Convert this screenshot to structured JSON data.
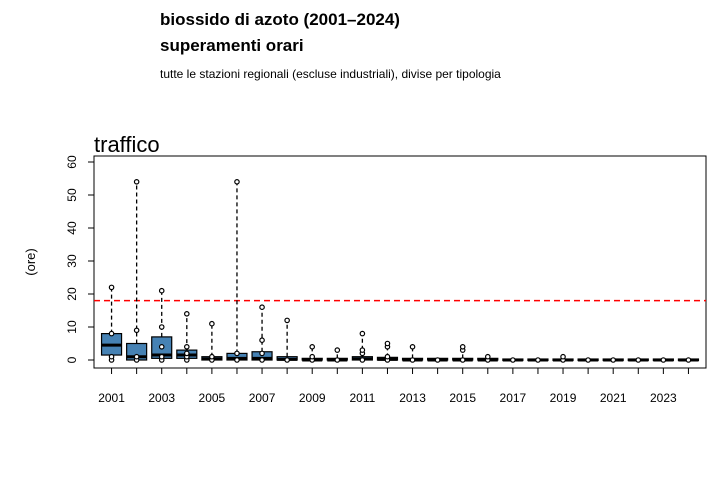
{
  "header": {
    "title_line1": "biossido di azoto (2001–2024)",
    "title_line2": "superamenti orari",
    "subtitle": "tutte le stazioni regionali (escluse industriali), divise per tipologia"
  },
  "chart_data": {
    "type": "boxplot",
    "panel_title": "traffico",
    "ylabel": "(ore)",
    "ylim": [
      0,
      60
    ],
    "yticks": [
      0,
      10,
      20,
      30,
      40,
      50,
      60
    ],
    "xlim": [
      2000.3,
      2024.7
    ],
    "xtick_labels": [
      "2001",
      "2003",
      "2005",
      "2007",
      "2009",
      "2011",
      "2013",
      "2015",
      "2017",
      "2019",
      "2021",
      "2023"
    ],
    "reference_line": {
      "value": 18,
      "color": "#ff0000",
      "style": "dashed"
    },
    "box_color": "#4682b4",
    "boxes": [
      {
        "year": 2001,
        "q1": 1.5,
        "median": 4.5,
        "q3": 8,
        "whisker_low": 0,
        "whisker_high": 22,
        "points": [
          0,
          1,
          8,
          22
        ]
      },
      {
        "year": 2002,
        "q1": 0,
        "median": 1,
        "q3": 5,
        "whisker_low": 0,
        "whisker_high": 54,
        "points": [
          0,
          1,
          9,
          54
        ]
      },
      {
        "year": 2003,
        "q1": 0.5,
        "median": 1.5,
        "q3": 7,
        "whisker_low": 0,
        "whisker_high": 21,
        "points": [
          0,
          1,
          4,
          10,
          21
        ]
      },
      {
        "year": 2004,
        "q1": 0.5,
        "median": 1.5,
        "q3": 3,
        "whisker_low": 0,
        "whisker_high": 14,
        "points": [
          0,
          1,
          2,
          4,
          14
        ]
      },
      {
        "year": 2005,
        "q1": 0,
        "median": 0.3,
        "q3": 1,
        "whisker_low": 0,
        "whisker_high": 11,
        "points": [
          0,
          1,
          11
        ]
      },
      {
        "year": 2006,
        "q1": 0,
        "median": 0.5,
        "q3": 2,
        "whisker_low": 0,
        "whisker_high": 54,
        "points": [
          0,
          2,
          54
        ]
      },
      {
        "year": 2007,
        "q1": 0,
        "median": 0.5,
        "q3": 2.5,
        "whisker_low": 0,
        "whisker_high": 16,
        "points": [
          0,
          2,
          6,
          16
        ]
      },
      {
        "year": 2008,
        "q1": 0,
        "median": 0.2,
        "q3": 1,
        "whisker_low": 0,
        "whisker_high": 12,
        "points": [
          0,
          12
        ]
      },
      {
        "year": 2009,
        "q1": 0,
        "median": 0,
        "q3": 0.5,
        "whisker_low": 0,
        "whisker_high": 4,
        "points": [
          0,
          1,
          4
        ]
      },
      {
        "year": 2010,
        "q1": 0,
        "median": 0,
        "q3": 0.5,
        "whisker_low": 0,
        "whisker_high": 3,
        "points": [
          0,
          3
        ]
      },
      {
        "year": 2011,
        "q1": 0,
        "median": 0.3,
        "q3": 1,
        "whisker_low": 0,
        "whisker_high": 8,
        "points": [
          0,
          2,
          3,
          8
        ]
      },
      {
        "year": 2012,
        "q1": 0,
        "median": 0.2,
        "q3": 0.8,
        "whisker_low": 0,
        "whisker_high": 5,
        "points": [
          0,
          1,
          4,
          5
        ]
      },
      {
        "year": 2013,
        "q1": 0,
        "median": 0,
        "q3": 0.5,
        "whisker_low": 0,
        "whisker_high": 4,
        "points": [
          0,
          4
        ]
      },
      {
        "year": 2014,
        "q1": 0,
        "median": 0,
        "q3": 0.5,
        "whisker_low": 0,
        "whisker_high": 0.5,
        "points": [
          0
        ]
      },
      {
        "year": 2015,
        "q1": 0,
        "median": 0,
        "q3": 0.5,
        "whisker_low": 0,
        "whisker_high": 3,
        "points": [
          0,
          3,
          4
        ]
      },
      {
        "year": 2016,
        "q1": 0,
        "median": 0,
        "q3": 0.5,
        "whisker_low": 0,
        "whisker_high": 1,
        "points": [
          0,
          1
        ]
      },
      {
        "year": 2017,
        "q1": 0,
        "median": 0,
        "q3": 0.3,
        "whisker_low": 0,
        "whisker_high": 0.3,
        "points": [
          0
        ]
      },
      {
        "year": 2018,
        "q1": 0,
        "median": 0,
        "q3": 0.3,
        "whisker_low": 0,
        "whisker_high": 0.3,
        "points": [
          0
        ]
      },
      {
        "year": 2019,
        "q1": 0,
        "median": 0,
        "q3": 0.3,
        "whisker_low": 0,
        "whisker_high": 1,
        "points": [
          0,
          1
        ]
      },
      {
        "year": 2020,
        "q1": 0,
        "median": 0,
        "q3": 0.3,
        "whisker_low": 0,
        "whisker_high": 0.3,
        "points": [
          0
        ]
      },
      {
        "year": 2021,
        "q1": 0,
        "median": 0,
        "q3": 0.3,
        "whisker_low": 0,
        "whisker_high": 0.3,
        "points": [
          0
        ]
      },
      {
        "year": 2022,
        "q1": 0,
        "median": 0,
        "q3": 0.3,
        "whisker_low": 0,
        "whisker_high": 0.3,
        "points": [
          0
        ]
      },
      {
        "year": 2023,
        "q1": 0,
        "median": 0,
        "q3": 0.3,
        "whisker_low": 0,
        "whisker_high": 0.3,
        "points": [
          0
        ]
      },
      {
        "year": 2024,
        "q1": 0,
        "median": 0,
        "q3": 0.3,
        "whisker_low": 0,
        "whisker_high": 0.3,
        "points": [
          0
        ]
      }
    ]
  }
}
